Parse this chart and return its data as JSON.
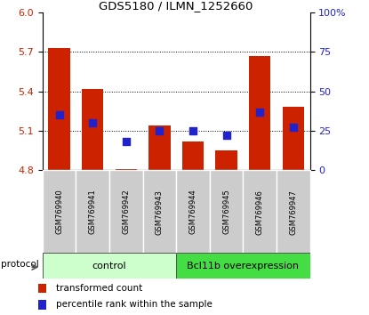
{
  "title": "GDS5180 / ILMN_1252660",
  "samples": [
    "GSM769940",
    "GSM769941",
    "GSM769942",
    "GSM769943",
    "GSM769944",
    "GSM769945",
    "GSM769946",
    "GSM769947"
  ],
  "transformed_counts": [
    5.73,
    5.42,
    4.81,
    5.14,
    5.02,
    4.95,
    5.67,
    5.28
  ],
  "percentile_ranks": [
    35,
    30,
    18,
    25,
    25,
    22,
    37,
    27
  ],
  "ylim_left": [
    4.8,
    6.0
  ],
  "yticks_left": [
    4.8,
    5.1,
    5.4,
    5.7,
    6.0
  ],
  "yticks_right": [
    0,
    25,
    50,
    75,
    100
  ],
  "bar_bottom": 4.8,
  "bar_color": "#cc2200",
  "blue_color": "#2222cc",
  "control_label": "control",
  "treatment_label": "Bcl11b overexpression",
  "protocol_label": "protocol",
  "legend_bar_label": "transformed count",
  "legend_dot_label": "percentile rank within the sample",
  "control_bg": "#ccffcc",
  "treatment_bg": "#44dd44",
  "sample_bg": "#cccccc",
  "bar_width": 0.65,
  "dot_size": 28,
  "n_control": 4,
  "n_treatment": 4
}
